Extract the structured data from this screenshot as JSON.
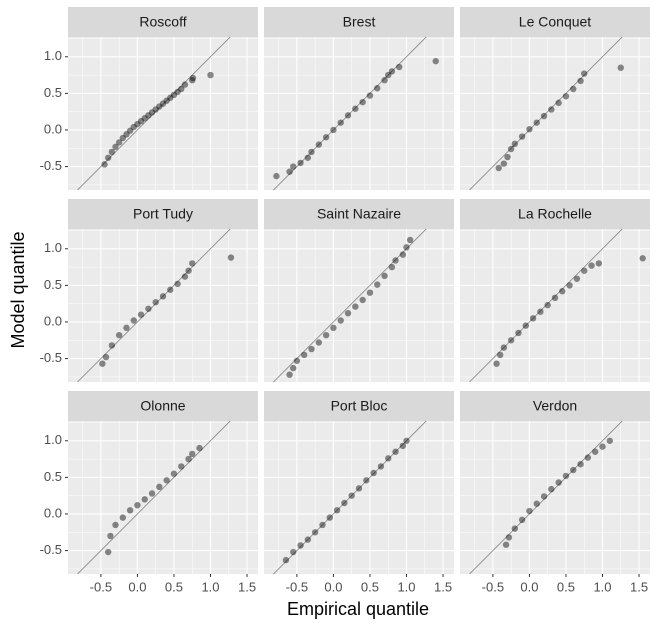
{
  "chart_data": {
    "type": "scatter",
    "xlabel": "Empirical quantile",
    "ylabel": "Model quantile",
    "xlim": [
      -0.95,
      1.65
    ],
    "ylim": [
      -0.82,
      1.27
    ],
    "xticks": [
      -0.5,
      {
        "value": 0,
        "label": "0.0"
      },
      0.5,
      {
        "value": 1,
        "label": "1.0"
      },
      1.5
    ],
    "yticks": [
      -0.5,
      {
        "value": 0,
        "label": "0.0"
      },
      0.5,
      {
        "value": 1,
        "label": "1.0"
      }
    ],
    "grid": true,
    "color": "#000000",
    "facets": [
      {
        "title": "Roscoff",
        "x": [
          -0.45,
          -0.4,
          -0.35,
          -0.3,
          -0.25,
          -0.2,
          -0.15,
          -0.1,
          -0.05,
          0,
          0.05,
          0.1,
          0.15,
          0.2,
          0.25,
          0.3,
          0.35,
          0.4,
          0.45,
          0.5,
          0.55,
          0.6,
          0.65,
          0.75,
          0.76,
          1.0
        ],
        "y": [
          -0.47,
          -0.38,
          -0.3,
          -0.23,
          -0.17,
          -0.11,
          -0.06,
          -0.01,
          0.04,
          0.08,
          0.12,
          0.16,
          0.2,
          0.24,
          0.28,
          0.32,
          0.36,
          0.4,
          0.44,
          0.48,
          0.52,
          0.56,
          0.62,
          0.68,
          0.71,
          0.75
        ]
      },
      {
        "title": "Brest",
        "x": [
          -0.78,
          -0.6,
          -0.55,
          -0.45,
          -0.35,
          -0.3,
          -0.2,
          -0.1,
          0,
          0.1,
          0.2,
          0.3,
          0.4,
          0.5,
          0.6,
          0.7,
          0.75,
          0.8,
          0.9,
          1.4
        ],
        "y": [
          -0.63,
          -0.57,
          -0.5,
          -0.45,
          -0.38,
          -0.3,
          -0.2,
          -0.1,
          0,
          0.1,
          0.2,
          0.29,
          0.38,
          0.47,
          0.57,
          0.68,
          0.75,
          0.8,
          0.86,
          0.94
        ]
      },
      {
        "title": "Le Conquet",
        "x": [
          -0.42,
          -0.35,
          -0.3,
          -0.25,
          -0.2,
          -0.1,
          0,
          0.1,
          0.2,
          0.3,
          0.4,
          0.5,
          0.6,
          0.7,
          0.75,
          1.25
        ],
        "y": [
          -0.52,
          -0.46,
          -0.37,
          -0.26,
          -0.19,
          -0.09,
          0.01,
          0.1,
          0.19,
          0.28,
          0.37,
          0.46,
          0.56,
          0.67,
          0.77,
          0.85
        ]
      },
      {
        "title": "Port Tudy",
        "x": [
          -0.48,
          -0.43,
          -0.35,
          -0.25,
          -0.15,
          -0.05,
          0.05,
          0.15,
          0.25,
          0.35,
          0.45,
          0.55,
          0.65,
          0.7,
          0.75,
          1.28
        ],
        "y": [
          -0.57,
          -0.48,
          -0.32,
          -0.18,
          -0.08,
          0.02,
          0.1,
          0.18,
          0.27,
          0.35,
          0.44,
          0.52,
          0.62,
          0.7,
          0.8,
          0.88
        ]
      },
      {
        "title": "Saint Nazaire",
        "x": [
          -0.6,
          -0.55,
          -0.5,
          -0.4,
          -0.3,
          -0.2,
          -0.1,
          0,
          0.1,
          0.2,
          0.3,
          0.4,
          0.5,
          0.6,
          0.7,
          0.8,
          0.85,
          0.95,
          1.0,
          1.05
        ],
        "y": [
          -0.72,
          -0.63,
          -0.53,
          -0.45,
          -0.37,
          -0.28,
          -0.18,
          -0.08,
          0.02,
          0.12,
          0.21,
          0.3,
          0.4,
          0.51,
          0.63,
          0.75,
          0.84,
          0.92,
          1.02,
          1.12
        ]
      },
      {
        "title": "La Rochelle",
        "x": [
          -0.45,
          -0.4,
          -0.35,
          -0.25,
          -0.15,
          -0.05,
          0.05,
          0.15,
          0.25,
          0.35,
          0.45,
          0.55,
          0.65,
          0.75,
          0.85,
          0.95,
          1.55
        ],
        "y": [
          -0.57,
          -0.45,
          -0.35,
          -0.25,
          -0.15,
          -0.05,
          0.05,
          0.14,
          0.23,
          0.33,
          0.42,
          0.5,
          0.59,
          0.7,
          0.77,
          0.8,
          0.87
        ]
      },
      {
        "title": "Olonne",
        "x": [
          -0.4,
          -0.37,
          -0.3,
          -0.2,
          -0.1,
          0,
          0.1,
          0.2,
          0.3,
          0.4,
          0.5,
          0.6,
          0.7,
          0.75,
          0.85
        ],
        "y": [
          -0.52,
          -0.3,
          -0.15,
          -0.05,
          0.05,
          0.12,
          0.2,
          0.28,
          0.37,
          0.46,
          0.55,
          0.65,
          0.75,
          0.82,
          0.9
        ]
      },
      {
        "title": "Port Bloc",
        "x": [
          -0.65,
          -0.55,
          -0.45,
          -0.35,
          -0.25,
          -0.15,
          -0.05,
          0.05,
          0.15,
          0.25,
          0.35,
          0.45,
          0.55,
          0.65,
          0.75,
          0.85,
          0.95,
          1.0
        ],
        "y": [
          -0.63,
          -0.52,
          -0.43,
          -0.35,
          -0.25,
          -0.15,
          -0.05,
          0.05,
          0.15,
          0.25,
          0.35,
          0.46,
          0.56,
          0.65,
          0.76,
          0.85,
          0.93,
          1.0
        ]
      },
      {
        "title": "Verdon",
        "x": [
          -0.32,
          -0.28,
          -0.2,
          -0.1,
          0,
          0.1,
          0.2,
          0.3,
          0.4,
          0.5,
          0.6,
          0.7,
          0.8,
          0.9,
          1.0,
          1.1
        ],
        "y": [
          -0.42,
          -0.32,
          -0.2,
          -0.08,
          0.04,
          0.14,
          0.24,
          0.34,
          0.43,
          0.52,
          0.6,
          0.68,
          0.77,
          0.85,
          0.92,
          1.0
        ]
      }
    ]
  }
}
